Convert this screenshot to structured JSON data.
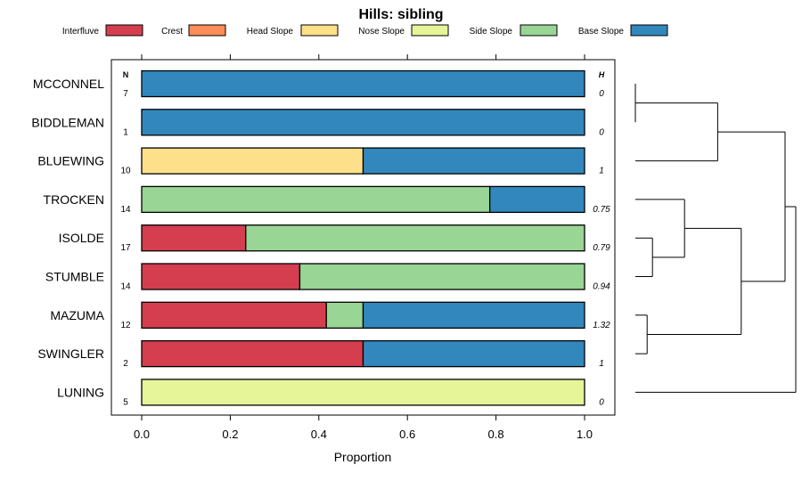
{
  "chart_data": {
    "type": "bar",
    "subtype": "stacked-horizontal-proportion",
    "title": "Hills: sibling",
    "xlabel": "Proportion",
    "ylabel": "",
    "xlim": [
      0,
      1
    ],
    "x_ticks": [
      0.0,
      0.2,
      0.4,
      0.6,
      0.8,
      1.0
    ],
    "x_tick_labels": [
      "0.0",
      "0.2",
      "0.4",
      "0.6",
      "0.8",
      "1.0"
    ],
    "n_header": "N",
    "h_header": "H",
    "legend": [
      {
        "name": "Interfluve",
        "color": "#D53E4F"
      },
      {
        "name": "Crest",
        "color": "#FC8D59"
      },
      {
        "name": "Head Slope",
        "color": "#FEE08B"
      },
      {
        "name": "Nose Slope",
        "color": "#E6F598"
      },
      {
        "name": "Side Slope",
        "color": "#99D594"
      },
      {
        "name": "Base Slope",
        "color": "#3288BD"
      }
    ],
    "categories": [
      "MCCONNEL",
      "BIDDLEMAN",
      "BLUEWING",
      "TROCKEN",
      "ISOLDE",
      "STUMBLE",
      "MAZUMA",
      "SWINGLER",
      "LUNING"
    ],
    "n_values": [
      "7",
      "1",
      "10",
      "14",
      "17",
      "14",
      "12",
      "2",
      "5"
    ],
    "h_values": [
      "0",
      "0",
      "1",
      "0.75",
      "0.79",
      "0.94",
      "1.32",
      "1",
      "0"
    ],
    "series": [
      {
        "name": "Interfluve",
        "values": [
          0,
          0,
          0,
          0,
          0.235,
          0.357,
          0.417,
          0.5,
          0
        ]
      },
      {
        "name": "Crest",
        "values": [
          0,
          0,
          0,
          0,
          0,
          0,
          0,
          0,
          0
        ]
      },
      {
        "name": "Head Slope",
        "values": [
          0,
          0,
          0.5,
          0,
          0,
          0,
          0,
          0,
          0
        ]
      },
      {
        "name": "Nose Slope",
        "values": [
          0,
          0,
          0,
          0,
          0,
          0,
          0,
          0,
          1.0
        ]
      },
      {
        "name": "Side Slope",
        "values": [
          0,
          0,
          0,
          0.786,
          0.765,
          0.643,
          0.083,
          0,
          0
        ]
      },
      {
        "name": "Base Slope",
        "values": [
          1.0,
          1.0,
          0.5,
          0.214,
          0,
          0,
          0.5,
          0.5,
          0
        ]
      }
    ],
    "dendrogram": {
      "leaves": [
        "MCCONNEL",
        "BIDDLEMAN",
        "BLUEWING",
        "TROCKEN",
        "ISOLDE",
        "STUMBLE",
        "MAZUMA",
        "SWINGLER",
        "LUNING"
      ],
      "merges": [
        {
          "a": 0,
          "b": 1,
          "height": 0.0
        },
        {
          "a": 4,
          "b": 5,
          "height": 0.16
        },
        {
          "a": 6,
          "b": 7,
          "height": 0.11
        },
        {
          "a": "c0",
          "b": 2,
          "height": 0.77
        },
        {
          "a": 3,
          "b": "c1",
          "height": 0.46
        },
        {
          "a": "c4",
          "b": "c2",
          "height": 0.99
        },
        {
          "a": "c3",
          "b": "c5",
          "height": 1.4
        },
        {
          "a": "c6",
          "b": 8,
          "height": 1.5
        }
      ]
    }
  }
}
